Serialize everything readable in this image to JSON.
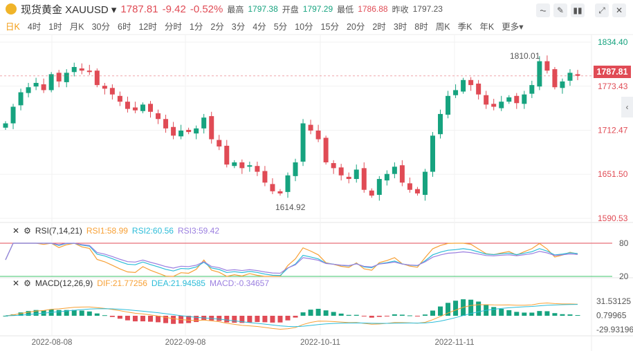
{
  "header": {
    "name": "现货黄金 XAUUSD",
    "price": "1787.81",
    "change": "-9.42",
    "change_pct": "-0.52%",
    "high_label": "最高",
    "high": "1797.38",
    "open_label": "开盘",
    "open": "1797.29",
    "low_label": "最低",
    "low": "1786.88",
    "prev_label": "昨收",
    "prev": "1797.23"
  },
  "tabs": [
    "日K",
    "4时",
    "1时",
    "月K",
    "30分",
    "6时",
    "12时",
    "分时",
    "1分",
    "2分",
    "3分",
    "4分",
    "5分",
    "10分",
    "15分",
    "20分",
    "2时",
    "3时",
    "8时",
    "周K",
    "季K",
    "年K",
    "更多"
  ],
  "active_tab": 0,
  "tools": [
    "indicator-icon",
    "draw-icon",
    "candle-type-icon",
    "expand-icon",
    "close-icon"
  ],
  "price_axis": {
    "ticks": [
      "1834.40",
      "1773.43",
      "1712.47",
      "1651.50",
      "1590.53"
    ],
    "current": "1787.81",
    "max_label": "1810.01",
    "min_label": "1614.92"
  },
  "rsi": {
    "title": "RSI(7,14,21)",
    "rsi1": "RSI1:58.99",
    "rsi2": "RSI2:60.56",
    "rsi3": "RSI3:59.42",
    "ticks": [
      "80",
      "20"
    ]
  },
  "macd": {
    "title": "MACD(12,26,9)",
    "dif": "DIF:21.77256",
    "dea": "DEA:21.94585",
    "macd": "MACD:-0.34657",
    "ticks": [
      "31.53125",
      "0.79965",
      "-29.93196"
    ]
  },
  "dates": [
    "2022-08-08",
    "2022-09-08",
    "2022-10-11",
    "2022-11-11"
  ],
  "colors": {
    "up": "#16a37f",
    "down": "#e04b55",
    "rsi1": "#f7a035",
    "rsi2": "#2bbcd8",
    "rsi3": "#9b7fe0"
  },
  "chart_data": {
    "type": "candlestick",
    "closes": [
      1722,
      1745,
      1765,
      1772,
      1778,
      1768,
      1790,
      1780,
      1792,
      1800,
      1795,
      1793,
      1775,
      1770,
      1762,
      1752,
      1742,
      1740,
      1748,
      1738,
      1728,
      1715,
      1705,
      1712,
      1710,
      1715,
      1730,
      1700,
      1690,
      1665,
      1668,
      1660,
      1664,
      1655,
      1640,
      1628,
      1625,
      1650,
      1668,
      1722,
      1712,
      1700,
      1668,
      1660,
      1650,
      1645,
      1658,
      1630,
      1622,
      1645,
      1652,
      1662,
      1640,
      1630,
      1625,
      1655,
      1705,
      1735,
      1760,
      1768,
      1782,
      1775,
      1762,
      1748,
      1745,
      1752,
      1758,
      1750,
      1762,
      1775,
      1808,
      1795,
      1772,
      1780,
      1792,
      1787.81
    ],
    "ylim": [
      1590.53,
      1834.4
    ]
  }
}
